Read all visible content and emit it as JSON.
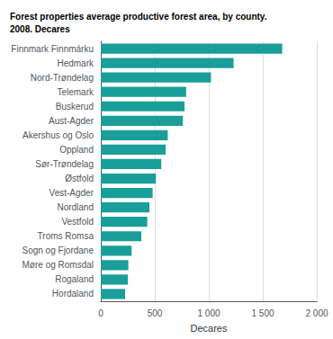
{
  "chart_data": {
    "type": "bar",
    "orientation": "horizontal",
    "title": "Forest properties average productive forest area, by county.\n2008. Decares",
    "categories": [
      "Finnmark Finnmárku",
      "Hedmark",
      "Nord-Trøndelag",
      "Telemark",
      "Buskerud",
      "Aust-Agder",
      "Akershus og Oslo",
      "Oppland",
      "Sør-Trøndelag",
      "Østfold",
      "Vest-Agder",
      "Nordland",
      "Vestfold",
      "Troms Romsa",
      "Sogn og Fjordane",
      "Møre og Romsdal",
      "Rogaland",
      "Hordaland"
    ],
    "values": [
      1680,
      1230,
      1020,
      790,
      775,
      760,
      620,
      600,
      560,
      510,
      480,
      450,
      430,
      375,
      285,
      255,
      250,
      225
    ],
    "color": "#1a9e9a",
    "xlabel": "Decares",
    "xlim": [
      0,
      2000
    ],
    "xticks": [
      0,
      500,
      {
        "value": 1000,
        "label": "1 000"
      },
      {
        "value": 1500,
        "label": "1 500"
      },
      {
        "value": 2000,
        "label": "2 000"
      }
    ],
    "grid": true
  }
}
